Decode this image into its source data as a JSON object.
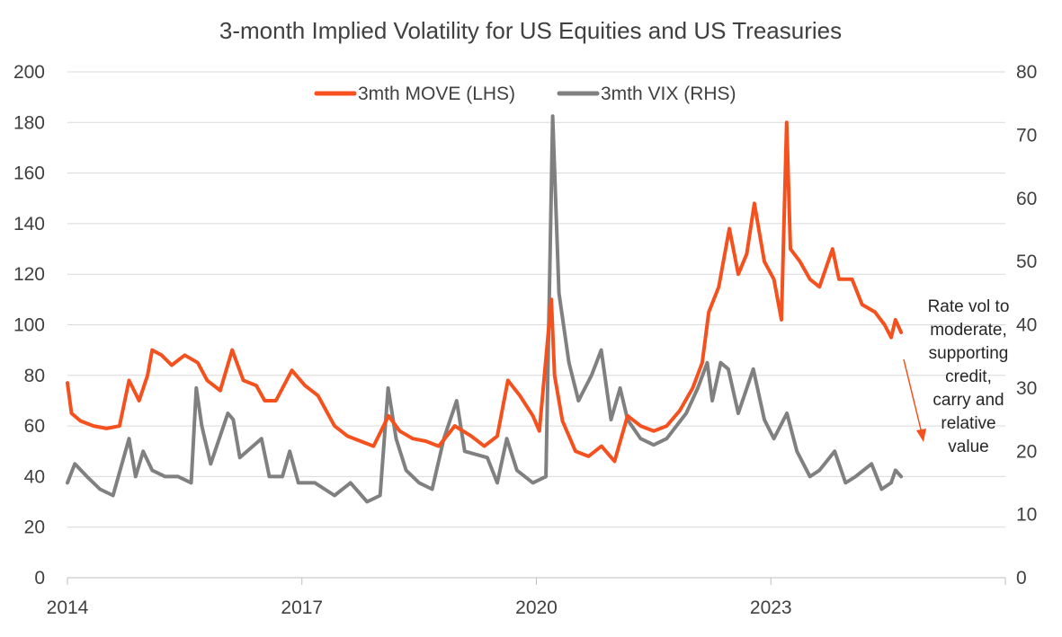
{
  "chart_data": {
    "type": "line",
    "title": "3-month Implied Volatility for US Equities and US Treasuries",
    "x_ticks": [
      "2014",
      "2017",
      "2020",
      "2023"
    ],
    "x_range": [
      "2014-01",
      "2026-01"
    ],
    "y_left": {
      "min": 0,
      "max": 200,
      "ticks": [
        "0",
        "20",
        "40",
        "60",
        "80",
        "100",
        "120",
        "140",
        "160",
        "180",
        "200"
      ]
    },
    "y_right": {
      "min": 0,
      "max": 80,
      "ticks": [
        "0",
        "10",
        "20",
        "30",
        "40",
        "50",
        "60",
        "70",
        "80"
      ]
    },
    "grid": true,
    "legend_position": "top",
    "series": [
      {
        "name": "3mth MOVE (LHS)",
        "axis": "left",
        "color": "#f4511e",
        "points": [
          [
            "2014-01-01",
            77
          ],
          [
            "2014-01-20",
            65
          ],
          [
            "2014-03-01",
            62
          ],
          [
            "2014-05-01",
            60
          ],
          [
            "2014-07-01",
            59
          ],
          [
            "2014-09-01",
            60
          ],
          [
            "2014-10-15",
            78
          ],
          [
            "2014-12-01",
            70
          ],
          [
            "2015-01-10",
            80
          ],
          [
            "2015-02-01",
            90
          ],
          [
            "2015-03-15",
            88
          ],
          [
            "2015-05-01",
            84
          ],
          [
            "2015-07-01",
            88
          ],
          [
            "2015-09-01",
            85
          ],
          [
            "2015-10-15",
            78
          ],
          [
            "2015-12-15",
            74
          ],
          [
            "2016-02-10",
            90
          ],
          [
            "2016-04-01",
            78
          ],
          [
            "2016-06-01",
            76
          ],
          [
            "2016-07-10",
            70
          ],
          [
            "2016-09-01",
            70
          ],
          [
            "2016-11-15",
            82
          ],
          [
            "2017-01-15",
            76
          ],
          [
            "2017-03-15",
            72
          ],
          [
            "2017-06-01",
            60
          ],
          [
            "2017-08-01",
            56
          ],
          [
            "2017-10-01",
            54
          ],
          [
            "2017-12-01",
            52
          ],
          [
            "2018-02-10",
            64
          ],
          [
            "2018-04-01",
            58
          ],
          [
            "2018-06-01",
            55
          ],
          [
            "2018-08-01",
            54
          ],
          [
            "2018-10-01",
            52
          ],
          [
            "2018-12-15",
            60
          ],
          [
            "2019-03-01",
            56
          ],
          [
            "2019-05-01",
            52
          ],
          [
            "2019-07-01",
            56
          ],
          [
            "2019-08-20",
            78
          ],
          [
            "2019-10-15",
            72
          ],
          [
            "2019-12-15",
            64
          ],
          [
            "2020-01-15",
            58
          ],
          [
            "2020-03-10",
            110
          ],
          [
            "2020-03-25",
            80
          ],
          [
            "2020-05-01",
            62
          ],
          [
            "2020-07-01",
            50
          ],
          [
            "2020-09-01",
            48
          ],
          [
            "2020-11-01",
            52
          ],
          [
            "2021-01-01",
            46
          ],
          [
            "2021-03-01",
            64
          ],
          [
            "2021-05-01",
            60
          ],
          [
            "2021-07-01",
            58
          ],
          [
            "2021-09-01",
            60
          ],
          [
            "2021-11-01",
            66
          ],
          [
            "2022-01-01",
            75
          ],
          [
            "2022-02-15",
            85
          ],
          [
            "2022-03-15",
            105
          ],
          [
            "2022-05-01",
            115
          ],
          [
            "2022-06-20",
            138
          ],
          [
            "2022-08-01",
            120
          ],
          [
            "2022-09-10",
            128
          ],
          [
            "2022-10-15",
            148
          ],
          [
            "2022-12-01",
            125
          ],
          [
            "2023-01-15",
            118
          ],
          [
            "2023-02-20",
            102
          ],
          [
            "2023-03-14",
            180
          ],
          [
            "2023-04-01",
            130
          ],
          [
            "2023-05-15",
            125
          ],
          [
            "2023-07-01",
            118
          ],
          [
            "2023-08-15",
            115
          ],
          [
            "2023-10-15",
            130
          ],
          [
            "2023-11-15",
            118
          ],
          [
            "2024-01-15",
            118
          ],
          [
            "2024-03-01",
            108
          ],
          [
            "2024-05-01",
            105
          ],
          [
            "2024-06-15",
            100
          ],
          [
            "2024-07-15",
            95
          ],
          [
            "2024-08-05",
            102
          ],
          [
            "2024-09-01",
            97
          ]
        ]
      },
      {
        "name": "3mth VIX (RHS)",
        "axis": "right",
        "color": "#808080",
        "points": [
          [
            "2014-01-01",
            15
          ],
          [
            "2014-02-05",
            18
          ],
          [
            "2014-04-01",
            16
          ],
          [
            "2014-06-01",
            14
          ],
          [
            "2014-08-01",
            13
          ],
          [
            "2014-10-15",
            22
          ],
          [
            "2014-11-15",
            16
          ],
          [
            "2014-12-20",
            20
          ],
          [
            "2015-02-01",
            17
          ],
          [
            "2015-04-01",
            16
          ],
          [
            "2015-06-01",
            16
          ],
          [
            "2015-08-01",
            15
          ],
          [
            "2015-08-25",
            30
          ],
          [
            "2015-09-20",
            24
          ],
          [
            "2015-11-01",
            18
          ],
          [
            "2016-01-20",
            26
          ],
          [
            "2016-02-15",
            25
          ],
          [
            "2016-03-15",
            19
          ],
          [
            "2016-06-25",
            22
          ],
          [
            "2016-08-01",
            16
          ],
          [
            "2016-10-01",
            16
          ],
          [
            "2016-11-05",
            20
          ],
          [
            "2016-12-15",
            15
          ],
          [
            "2017-03-01",
            15
          ],
          [
            "2017-06-01",
            13
          ],
          [
            "2017-08-15",
            15
          ],
          [
            "2017-11-01",
            12
          ],
          [
            "2018-01-01",
            13
          ],
          [
            "2018-02-08",
            30
          ],
          [
            "2018-03-15",
            22
          ],
          [
            "2018-05-01",
            17
          ],
          [
            "2018-07-01",
            15
          ],
          [
            "2018-09-01",
            14
          ],
          [
            "2018-10-25",
            22
          ],
          [
            "2018-12-24",
            28
          ],
          [
            "2019-02-01",
            20
          ],
          [
            "2019-05-15",
            19
          ],
          [
            "2019-07-01",
            15
          ],
          [
            "2019-08-15",
            22
          ],
          [
            "2019-10-01",
            17
          ],
          [
            "2019-12-15",
            15
          ],
          [
            "2020-02-15",
            16
          ],
          [
            "2020-03-16",
            73
          ],
          [
            "2020-04-15",
            45
          ],
          [
            "2020-06-01",
            34
          ],
          [
            "2020-07-15",
            28
          ],
          [
            "2020-09-15",
            32
          ],
          [
            "2020-10-30",
            36
          ],
          [
            "2020-12-15",
            25
          ],
          [
            "2021-01-27",
            30
          ],
          [
            "2021-03-01",
            25
          ],
          [
            "2021-05-01",
            22
          ],
          [
            "2021-07-01",
            21
          ],
          [
            "2021-09-01",
            22
          ],
          [
            "2021-12-01",
            26
          ],
          [
            "2022-01-25",
            30
          ],
          [
            "2022-03-08",
            34
          ],
          [
            "2022-04-01",
            28
          ],
          [
            "2022-05-10",
            34
          ],
          [
            "2022-06-15",
            33
          ],
          [
            "2022-08-01",
            26
          ],
          [
            "2022-10-10",
            33
          ],
          [
            "2022-12-01",
            25
          ],
          [
            "2023-01-15",
            22
          ],
          [
            "2023-03-15",
            26
          ],
          [
            "2023-05-01",
            20
          ],
          [
            "2023-07-01",
            16
          ],
          [
            "2023-08-15",
            17
          ],
          [
            "2023-10-25",
            20
          ],
          [
            "2023-12-15",
            15
          ],
          [
            "2024-02-01",
            16
          ],
          [
            "2024-04-15",
            18
          ],
          [
            "2024-06-01",
            14
          ],
          [
            "2024-07-15",
            15
          ],
          [
            "2024-08-05",
            17
          ],
          [
            "2024-09-01",
            16
          ]
        ]
      }
    ],
    "annotation": {
      "lines": [
        "Rate vol to",
        "moderate,",
        "supporting",
        "credit,",
        "carry and",
        "relative",
        "value"
      ],
      "arrow_color": "#f4511e"
    }
  }
}
